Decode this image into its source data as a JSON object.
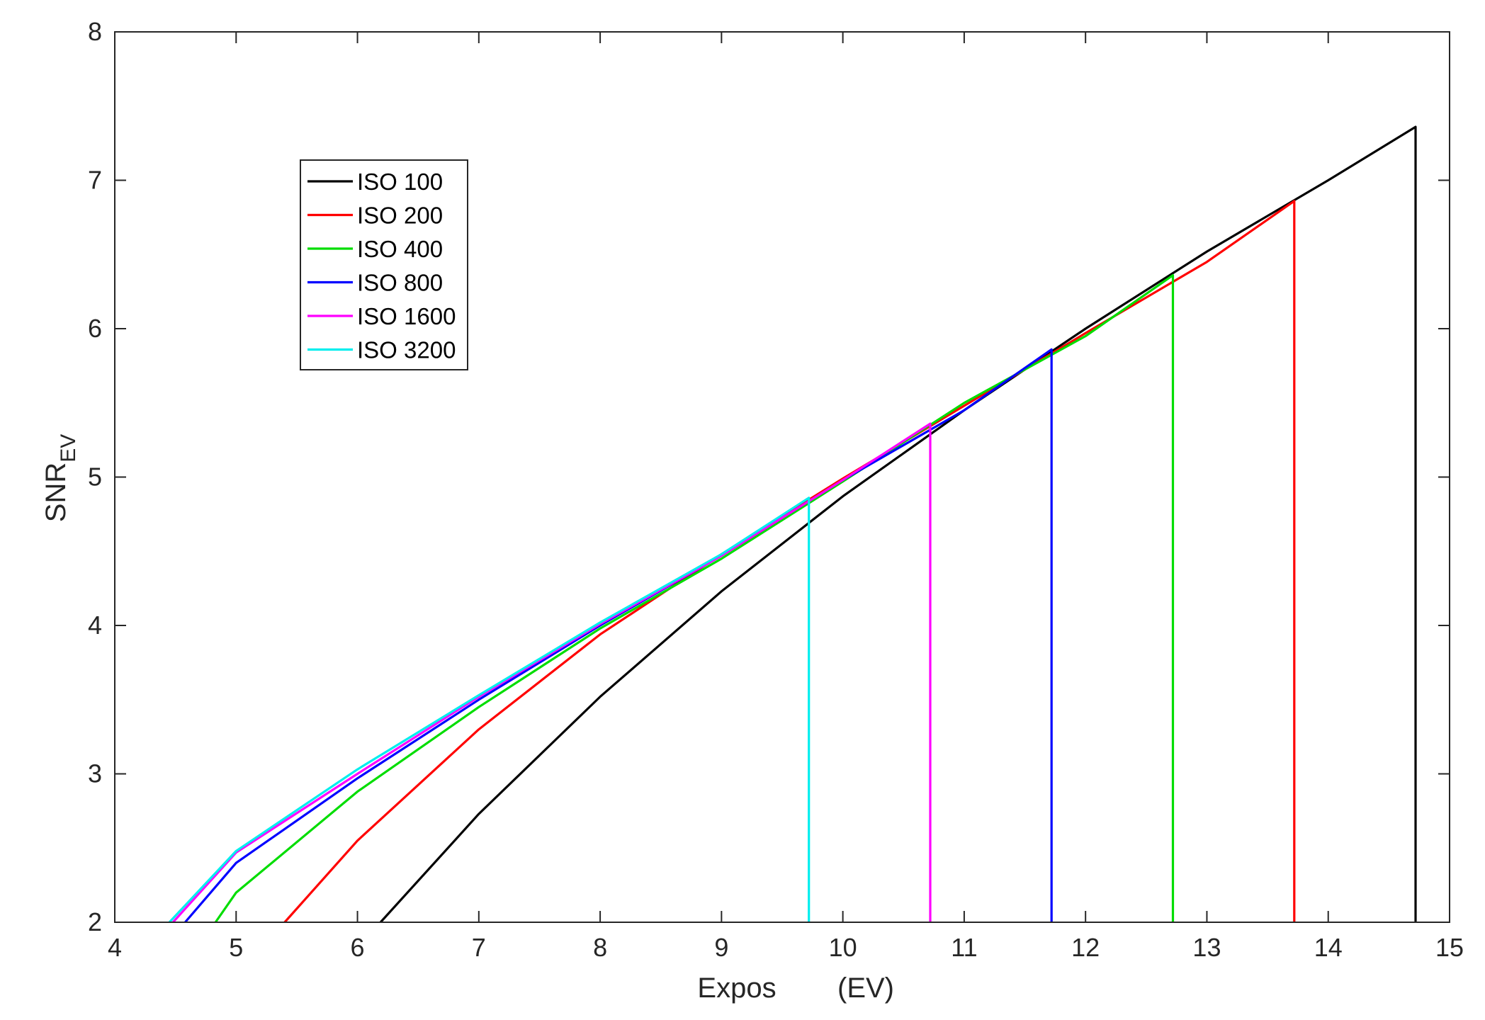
{
  "chart_data": {
    "type": "line",
    "xlabel_main": "Expos",
    "xlabel_unit": "(EV)",
    "ylabel_base": "SNR",
    "ylabel_sub": "EV",
    "xlim": [
      4,
      15
    ],
    "ylim": [
      2,
      8
    ],
    "xticks": [
      "4",
      "5",
      "6",
      "7",
      "8",
      "9",
      "10",
      "11",
      "12",
      "13",
      "14",
      "15"
    ],
    "yticks": [
      "2",
      "3",
      "4",
      "5",
      "6",
      "7",
      "8"
    ],
    "grid": false,
    "legend_position": "top-left",
    "series": [
      {
        "name": "ISO 100",
        "color": "#000000",
        "points": [
          [
            6.19,
            2.0
          ],
          [
            7.0,
            2.73
          ],
          [
            8.0,
            3.52
          ],
          [
            9.0,
            4.23
          ],
          [
            10.0,
            4.87
          ],
          [
            11.0,
            5.45
          ],
          [
            12.0,
            6.0
          ],
          [
            13.0,
            6.52
          ],
          [
            14.0,
            7.0
          ],
          [
            14.72,
            7.36
          ],
          [
            14.72,
            2.0
          ]
        ]
      },
      {
        "name": "ISO 200",
        "color": "#ff0000",
        "points": [
          [
            5.4,
            2.0
          ],
          [
            6.0,
            2.55
          ],
          [
            7.0,
            3.3
          ],
          [
            8.0,
            3.94
          ],
          [
            9.0,
            4.48
          ],
          [
            10.0,
            4.99
          ],
          [
            11.0,
            5.48
          ],
          [
            12.0,
            5.97
          ],
          [
            13.0,
            6.45
          ],
          [
            13.72,
            6.86
          ],
          [
            13.72,
            2.0
          ]
        ]
      },
      {
        "name": "ISO 400",
        "color": "#00dd00",
        "points": [
          [
            4.83,
            2.0
          ],
          [
            5.0,
            2.2
          ],
          [
            6.0,
            2.88
          ],
          [
            7.0,
            3.45
          ],
          [
            8.0,
            3.98
          ],
          [
            9.0,
            4.45
          ],
          [
            10.0,
            4.97
          ],
          [
            11.0,
            5.5
          ],
          [
            12.0,
            5.95
          ],
          [
            12.72,
            6.36
          ],
          [
            12.72,
            2.0
          ]
        ]
      },
      {
        "name": "ISO 800",
        "color": "#0000ff",
        "points": [
          [
            4.58,
            2.0
          ],
          [
            5.0,
            2.4
          ],
          [
            6.0,
            2.97
          ],
          [
            7.0,
            3.5
          ],
          [
            8.0,
            4.0
          ],
          [
            9.0,
            4.47
          ],
          [
            10.0,
            4.98
          ],
          [
            11.0,
            5.45
          ],
          [
            11.72,
            5.86
          ],
          [
            11.72,
            2.0
          ]
        ]
      },
      {
        "name": "ISO 1600",
        "color": "#ff00ff",
        "points": [
          [
            4.48,
            2.0
          ],
          [
            5.0,
            2.47
          ],
          [
            6.0,
            3.0
          ],
          [
            7.0,
            3.52
          ],
          [
            8.0,
            4.01
          ],
          [
            9.0,
            4.47
          ],
          [
            10.0,
            4.98
          ],
          [
            10.72,
            5.36
          ],
          [
            10.72,
            2.0
          ]
        ]
      },
      {
        "name": "ISO 3200",
        "color": "#00eeee",
        "points": [
          [
            4.45,
            2.0
          ],
          [
            5.0,
            2.48
          ],
          [
            6.0,
            3.03
          ],
          [
            7.0,
            3.53
          ],
          [
            8.0,
            4.02
          ],
          [
            9.0,
            4.48
          ],
          [
            9.72,
            4.86
          ],
          [
            9.72,
            2.0
          ]
        ]
      }
    ]
  }
}
